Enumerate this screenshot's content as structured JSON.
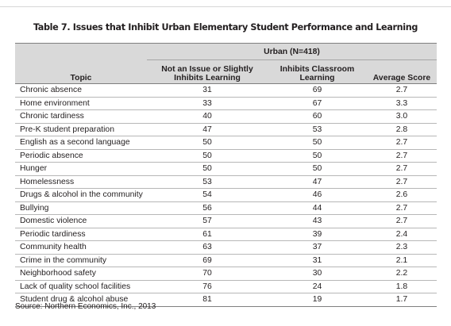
{
  "title": "Table 7. Issues that Inhibit Urban Elementary Student Performance and Learning",
  "table": {
    "group_header": "Urban (N=418)",
    "columns": [
      "Topic",
      "Not an Issue or Slightly Inhibits Learning",
      "Inhibits Classroom Learning",
      "Average Score"
    ],
    "rows": [
      [
        "Chronic absence",
        "31",
        "69",
        "2.7"
      ],
      [
        "Home environment",
        "33",
        "67",
        "3.3"
      ],
      [
        "Chronic tardiness",
        "40",
        "60",
        "3.0"
      ],
      [
        "Pre-K student preparation",
        "47",
        "53",
        "2.8"
      ],
      [
        "English as a second language",
        "50",
        "50",
        "2.7"
      ],
      [
        "Periodic absence",
        "50",
        "50",
        "2.7"
      ],
      [
        "Hunger",
        "50",
        "50",
        "2.7"
      ],
      [
        "Homelessness",
        "53",
        "47",
        "2.7"
      ],
      [
        "Drugs & alcohol  in the community",
        "54",
        "46",
        "2.6"
      ],
      [
        "Bullying",
        "56",
        "44",
        "2.7"
      ],
      [
        "Domestic violence",
        "57",
        "43",
        "2.7"
      ],
      [
        "Periodic tardiness",
        "61",
        "39",
        "2.4"
      ],
      [
        "Community health",
        "63",
        "37",
        "2.3"
      ],
      [
        "Crime in the community",
        "69",
        "31",
        "2.1"
      ],
      [
        "Neighborhood safety",
        "70",
        "30",
        "2.2"
      ],
      [
        "Lack of quality school facilities",
        "76",
        "24",
        "1.8"
      ],
      [
        "Student drug & alcohol abuse",
        "81",
        "19",
        "1.7"
      ]
    ]
  },
  "source": "Source: Northern Economics, Inc., 2013"
}
